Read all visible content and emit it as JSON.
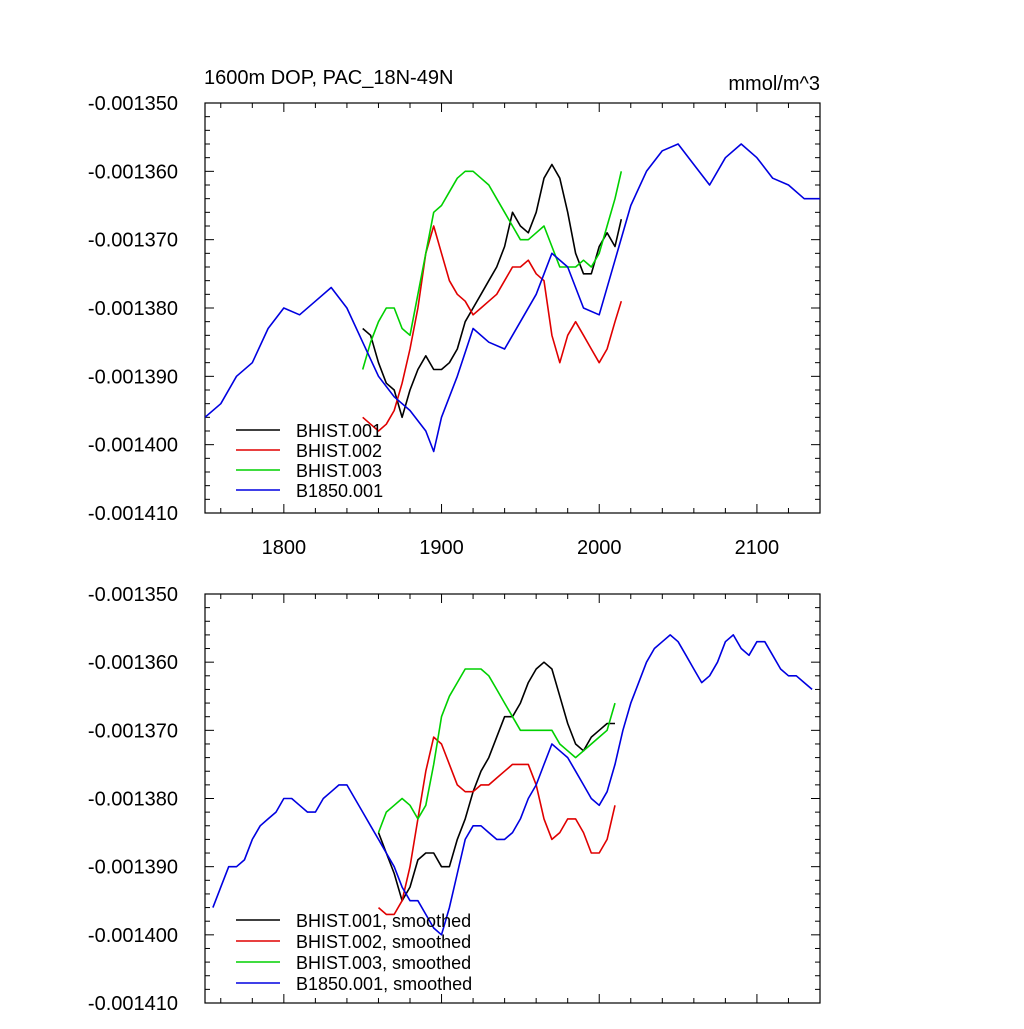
{
  "figure": {
    "title_left": "1600m DOP, PAC_18N-49N",
    "title_right": "mmol/m^3"
  },
  "chart_data": [
    {
      "type": "line",
      "title": "1600m DOP, PAC_18N-49N",
      "units": "mmol/m^3",
      "xlim": [
        1750,
        2140
      ],
      "ylim": [
        -0.00141,
        -0.00135
      ],
      "x_ticks": [
        1800,
        1900,
        2000,
        2100
      ],
      "x_tick_labels": [
        "1800",
        "1900",
        "2000",
        "2100"
      ],
      "y_ticks": [
        -0.00135,
        -0.00136,
        -0.00137,
        -0.00138,
        -0.00139,
        -0.0014,
        -0.00141
      ],
      "y_tick_labels": [
        "-0.001350",
        "-0.001360",
        "-0.001370",
        "-0.001380",
        "-0.001390",
        "-0.001400",
        "-0.001410"
      ],
      "legend_position": "bottom-left",
      "series": [
        {
          "name": "BHIST.001",
          "color": "#000000",
          "x": [
            1850,
            1855,
            1860,
            1865,
            1870,
            1875,
            1880,
            1885,
            1890,
            1895,
            1900,
            1905,
            1910,
            1915,
            1920,
            1925,
            1930,
            1935,
            1940,
            1945,
            1950,
            1955,
            1960,
            1965,
            1970,
            1975,
            1980,
            1985,
            1990,
            1995,
            2000,
            2005,
            2010,
            2014
          ],
          "y": [
            -0.001383,
            -0.001384,
            -0.001388,
            -0.001391,
            -0.001392,
            -0.001396,
            -0.001392,
            -0.001389,
            -0.001387,
            -0.001389,
            -0.001389,
            -0.001388,
            -0.001386,
            -0.001382,
            -0.00138,
            -0.001378,
            -0.001376,
            -0.001374,
            -0.001371,
            -0.001366,
            -0.001368,
            -0.001369,
            -0.001366,
            -0.001361,
            -0.001359,
            -0.001361,
            -0.001366,
            -0.001372,
            -0.001375,
            -0.001375,
            -0.001371,
            -0.001369,
            -0.001371,
            -0.001367
          ]
        },
        {
          "name": "BHIST.002",
          "color": "#e00000",
          "x": [
            1850,
            1855,
            1860,
            1865,
            1870,
            1875,
            1880,
            1885,
            1890,
            1895,
            1900,
            1905,
            1910,
            1915,
            1920,
            1925,
            1930,
            1935,
            1940,
            1945,
            1950,
            1955,
            1960,
            1965,
            1970,
            1975,
            1980,
            1985,
            1990,
            1995,
            2000,
            2005,
            2010,
            2014
          ],
          "y": [
            -0.001396,
            -0.001397,
            -0.001398,
            -0.001397,
            -0.001395,
            -0.001391,
            -0.001386,
            -0.00138,
            -0.001372,
            -0.001368,
            -0.001372,
            -0.001376,
            -0.001378,
            -0.001379,
            -0.001381,
            -0.00138,
            -0.001379,
            -0.001378,
            -0.001376,
            -0.001374,
            -0.001374,
            -0.001373,
            -0.001375,
            -0.001376,
            -0.001384,
            -0.001388,
            -0.001384,
            -0.001382,
            -0.001384,
            -0.001386,
            -0.001388,
            -0.001386,
            -0.001382,
            -0.001379
          ]
        },
        {
          "name": "BHIST.003",
          "color": "#00d000",
          "x": [
            1850,
            1855,
            1860,
            1865,
            1870,
            1875,
            1880,
            1885,
            1890,
            1895,
            1900,
            1905,
            1910,
            1915,
            1920,
            1925,
            1930,
            1935,
            1940,
            1945,
            1950,
            1955,
            1960,
            1965,
            1970,
            1975,
            1980,
            1985,
            1990,
            1995,
            2000,
            2005,
            2010,
            2014
          ],
          "y": [
            -0.001389,
            -0.001385,
            -0.001382,
            -0.00138,
            -0.00138,
            -0.001383,
            -0.001384,
            -0.001378,
            -0.001372,
            -0.001366,
            -0.001365,
            -0.001363,
            -0.001361,
            -0.00136,
            -0.00136,
            -0.001361,
            -0.001362,
            -0.001364,
            -0.001366,
            -0.001368,
            -0.00137,
            -0.00137,
            -0.001369,
            -0.001368,
            -0.001371,
            -0.001374,
            -0.001374,
            -0.001374,
            -0.001373,
            -0.001374,
            -0.001372,
            -0.001368,
            -0.001364,
            -0.00136
          ]
        },
        {
          "name": "B1850.001",
          "color": "#0000e0",
          "x": [
            1750,
            1760,
            1770,
            1780,
            1790,
            1800,
            1810,
            1820,
            1830,
            1840,
            1850,
            1860,
            1870,
            1880,
            1890,
            1895,
            1900,
            1910,
            1920,
            1930,
            1940,
            1950,
            1960,
            1970,
            1980,
            1990,
            2000,
            2010,
            2020,
            2030,
            2040,
            2050,
            2060,
            2070,
            2080,
            2090,
            2100,
            2110,
            2120,
            2130,
            2140
          ],
          "y": [
            -0.001396,
            -0.001394,
            -0.00139,
            -0.001388,
            -0.001383,
            -0.00138,
            -0.001381,
            -0.001379,
            -0.001377,
            -0.00138,
            -0.001385,
            -0.00139,
            -0.001393,
            -0.001395,
            -0.001398,
            -0.001401,
            -0.001396,
            -0.00139,
            -0.001383,
            -0.001385,
            -0.001386,
            -0.001382,
            -0.001378,
            -0.001372,
            -0.001374,
            -0.00138,
            -0.001381,
            -0.001373,
            -0.001365,
            -0.00136,
            -0.001357,
            -0.001356,
            -0.001359,
            -0.001362,
            -0.001358,
            -0.001356,
            -0.001358,
            -0.001361,
            -0.001362,
            -0.001364,
            -0.001364
          ]
        }
      ]
    },
    {
      "type": "line",
      "xlim": [
        1750,
        2140
      ],
      "ylim": [
        -0.00141,
        -0.00135
      ],
      "x_ticks": [
        1800,
        1900,
        2000,
        2100
      ],
      "x_tick_labels": [],
      "y_ticks": [
        -0.00135,
        -0.00136,
        -0.00137,
        -0.00138,
        -0.00139,
        -0.0014,
        -0.00141
      ],
      "y_tick_labels": [
        "-0.001350",
        "-0.001360",
        "-0.001370",
        "-0.001380",
        "-0.001390",
        "-0.001400",
        "-0.001410"
      ],
      "legend_position": "bottom-left",
      "series": [
        {
          "name": "BHIST.001, smoothed",
          "color": "#000000",
          "x": [
            1860,
            1865,
            1870,
            1875,
            1880,
            1885,
            1890,
            1895,
            1900,
            1905,
            1910,
            1915,
            1920,
            1925,
            1930,
            1935,
            1940,
            1945,
            1950,
            1955,
            1960,
            1965,
            1970,
            1975,
            1980,
            1985,
            1990,
            1995,
            2000,
            2005,
            2010
          ],
          "y": [
            -0.001385,
            -0.001388,
            -0.001391,
            -0.001395,
            -0.001393,
            -0.001389,
            -0.001388,
            -0.001388,
            -0.00139,
            -0.00139,
            -0.001386,
            -0.001383,
            -0.001379,
            -0.001376,
            -0.001374,
            -0.001371,
            -0.001368,
            -0.001368,
            -0.001366,
            -0.001363,
            -0.001361,
            -0.00136,
            -0.001361,
            -0.001365,
            -0.001369,
            -0.001372,
            -0.001373,
            -0.001371,
            -0.00137,
            -0.001369,
            -0.001369
          ]
        },
        {
          "name": "BHIST.002, smoothed",
          "color": "#e00000",
          "x": [
            1860,
            1865,
            1870,
            1875,
            1880,
            1885,
            1890,
            1895,
            1900,
            1905,
            1910,
            1915,
            1920,
            1925,
            1930,
            1935,
            1940,
            1945,
            1950,
            1955,
            1960,
            1965,
            1970,
            1975,
            1980,
            1985,
            1990,
            1995,
            2000,
            2005,
            2010
          ],
          "y": [
            -0.001396,
            -0.001397,
            -0.001397,
            -0.001395,
            -0.00139,
            -0.001383,
            -0.001376,
            -0.001371,
            -0.001372,
            -0.001375,
            -0.001378,
            -0.001379,
            -0.001379,
            -0.001378,
            -0.001378,
            -0.001377,
            -0.001376,
            -0.001375,
            -0.001375,
            -0.001375,
            -0.001378,
            -0.001383,
            -0.001386,
            -0.001385,
            -0.001383,
            -0.001383,
            -0.001385,
            -0.001388,
            -0.001388,
            -0.001386,
            -0.001381
          ]
        },
        {
          "name": "BHIST.003, smoothed",
          "color": "#00d000",
          "x": [
            1860,
            1865,
            1870,
            1875,
            1880,
            1885,
            1890,
            1895,
            1900,
            1905,
            1910,
            1915,
            1920,
            1925,
            1930,
            1935,
            1940,
            1945,
            1950,
            1955,
            1960,
            1965,
            1970,
            1975,
            1980,
            1985,
            1990,
            1995,
            2000,
            2005,
            2010
          ],
          "y": [
            -0.001385,
            -0.001382,
            -0.001381,
            -0.00138,
            -0.001381,
            -0.001383,
            -0.001381,
            -0.001375,
            -0.001368,
            -0.001365,
            -0.001363,
            -0.001361,
            -0.001361,
            -0.001361,
            -0.001362,
            -0.001364,
            -0.001366,
            -0.001368,
            -0.00137,
            -0.00137,
            -0.00137,
            -0.00137,
            -0.00137,
            -0.001372,
            -0.001373,
            -0.001374,
            -0.001373,
            -0.001372,
            -0.001371,
            -0.00137,
            -0.001366
          ]
        },
        {
          "name": "B1850.001, smoothed",
          "color": "#0000e0",
          "x": [
            1755,
            1760,
            1765,
            1770,
            1775,
            1780,
            1785,
            1790,
            1795,
            1800,
            1805,
            1810,
            1815,
            1820,
            1825,
            1830,
            1835,
            1840,
            1845,
            1850,
            1855,
            1860,
            1865,
            1870,
            1875,
            1880,
            1885,
            1890,
            1895,
            1900,
            1905,
            1910,
            1915,
            1920,
            1925,
            1930,
            1935,
            1940,
            1945,
            1950,
            1955,
            1960,
            1965,
            1970,
            1975,
            1980,
            1985,
            1990,
            1995,
            2000,
            2005,
            2010,
            2015,
            2020,
            2025,
            2030,
            2035,
            2040,
            2045,
            2050,
            2055,
            2060,
            2065,
            2070,
            2075,
            2080,
            2085,
            2090,
            2095,
            2100,
            2105,
            2110,
            2115,
            2120,
            2125,
            2130,
            2135
          ],
          "y": [
            -0.001396,
            -0.001393,
            -0.00139,
            -0.00139,
            -0.001389,
            -0.001386,
            -0.001384,
            -0.001383,
            -0.001382,
            -0.00138,
            -0.00138,
            -0.001381,
            -0.001382,
            -0.001382,
            -0.00138,
            -0.001379,
            -0.001378,
            -0.001378,
            -0.00138,
            -0.001382,
            -0.001384,
            -0.001386,
            -0.001388,
            -0.00139,
            -0.001393,
            -0.001395,
            -0.001395,
            -0.001397,
            -0.001399,
            -0.0014,
            -0.001396,
            -0.001391,
            -0.001386,
            -0.001384,
            -0.001384,
            -0.001385,
            -0.001386,
            -0.001386,
            -0.001385,
            -0.001383,
            -0.00138,
            -0.001378,
            -0.001375,
            -0.001372,
            -0.001373,
            -0.001374,
            -0.001376,
            -0.001378,
            -0.00138,
            -0.001381,
            -0.001379,
            -0.001375,
            -0.00137,
            -0.001366,
            -0.001363,
            -0.00136,
            -0.001358,
            -0.001357,
            -0.001356,
            -0.001357,
            -0.001359,
            -0.001361,
            -0.001363,
            -0.001362,
            -0.00136,
            -0.001357,
            -0.001356,
            -0.001358,
            -0.001359,
            -0.001357,
            -0.001357,
            -0.001359,
            -0.001361,
            -0.001362,
            -0.001362,
            -0.001363,
            -0.001364
          ]
        }
      ]
    }
  ]
}
